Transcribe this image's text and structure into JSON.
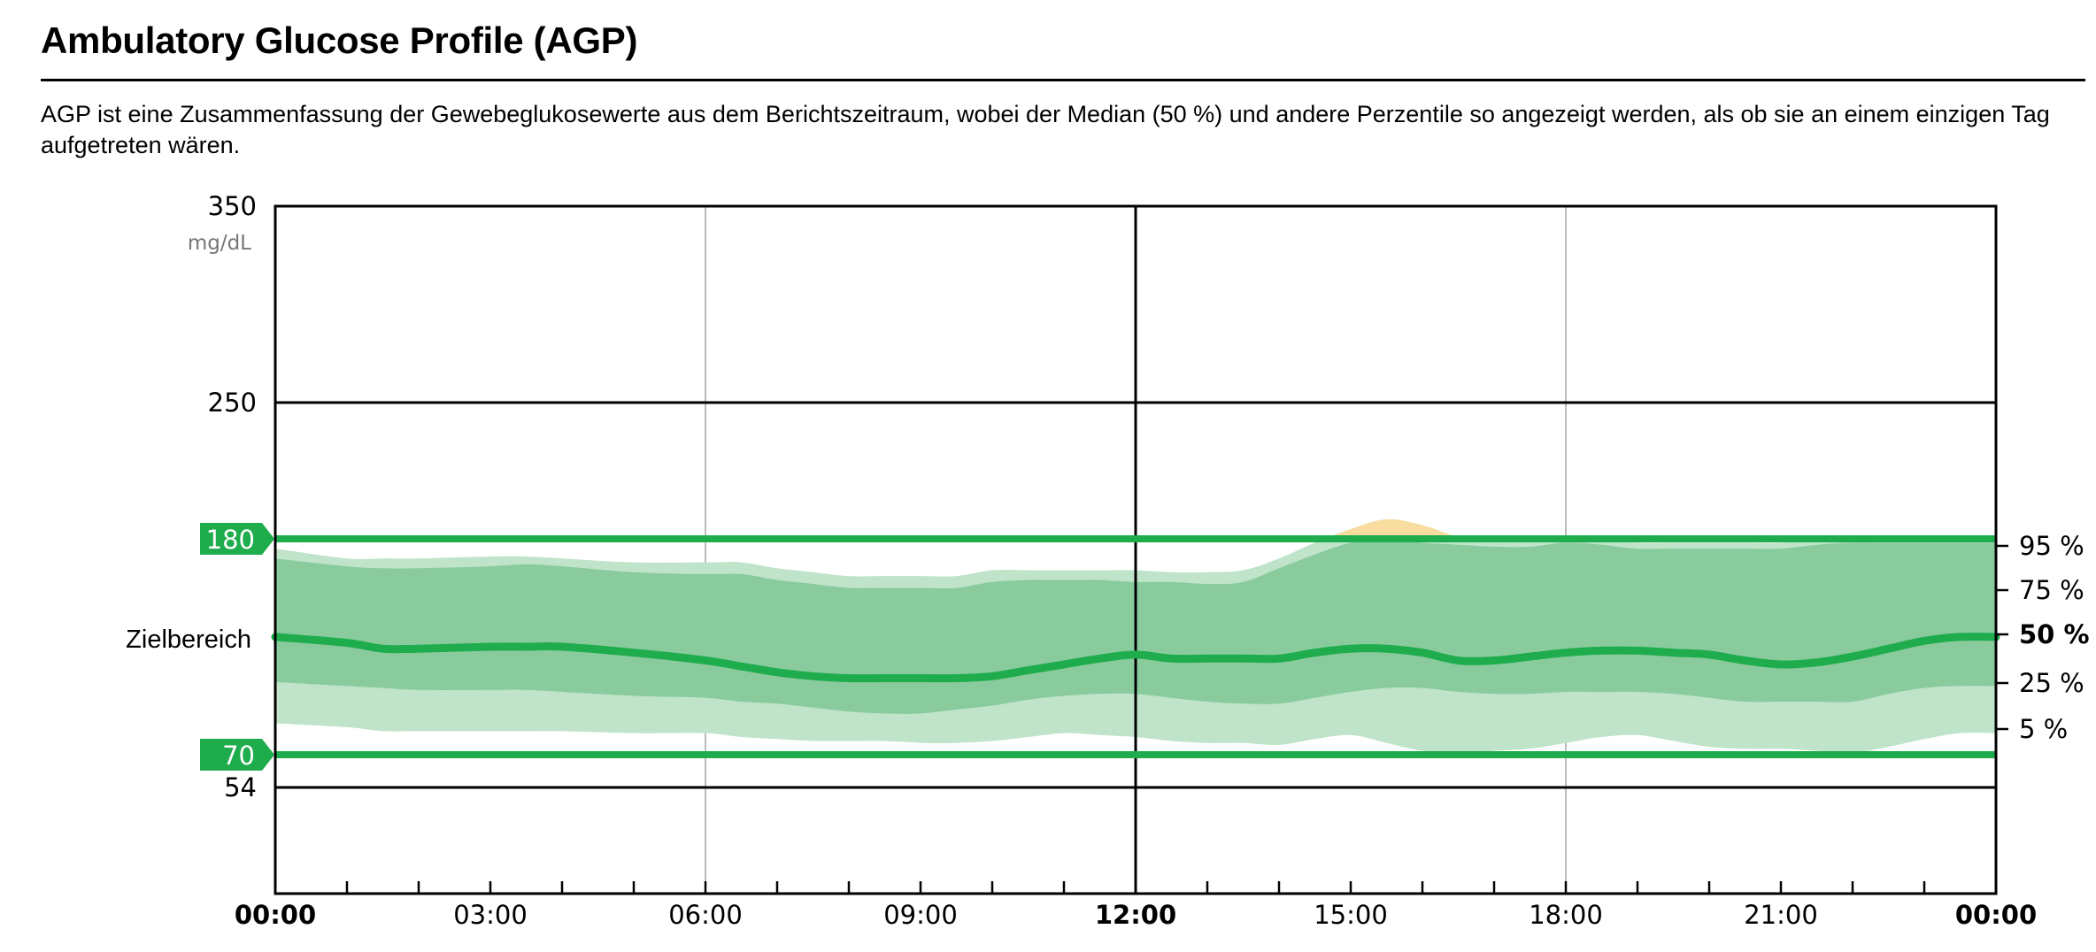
{
  "header": {
    "title": "Ambulatory Glucose Profile (AGP)",
    "description": "AGP ist eine Zusammenfassung der Gewebeglukosewerte aus dem Berichtszeitraum, wobei der Median (50 %) und andere Perzentile so angezeigt werden, als ob sie an einem einzigen Tag aufgetreten wären."
  },
  "colors": {
    "target_green": "#1fac4d",
    "band_25_75": "#8acb9e",
    "band_5_95": "#bfe4c9",
    "above_range": "#f8dd9e",
    "grid_major": "#000000",
    "grid_minor": "#bbbbbb"
  },
  "chart_data": {
    "type": "area",
    "title": "",
    "ylabel": "mg/dL",
    "ylim": [
      0,
      350
    ],
    "y_ticks": [
      "350",
      "250",
      "54"
    ],
    "y_tick_values": [
      350,
      250,
      54
    ],
    "target_range": {
      "low": 70,
      "high": 180,
      "low_label": "70",
      "high_label": "180",
      "label": "Zielbereich"
    },
    "xlim": [
      "00:00",
      "24:00"
    ],
    "x_ticks": [
      "00:00",
      "03:00",
      "06:00",
      "09:00",
      "12:00",
      "15:00",
      "18:00",
      "21:00",
      "00:00"
    ],
    "x_tick_bold": [
      true,
      false,
      false,
      false,
      true,
      false,
      false,
      false,
      true
    ],
    "percentile_labels": [
      "95 %",
      "75 %",
      "50 %",
      "25 %",
      "5 %"
    ],
    "percentile_bold": [
      false,
      false,
      true,
      false,
      false
    ],
    "x": [
      "00:00",
      "01:00",
      "01:30",
      "02:00",
      "03:00",
      "03:30",
      "04:00",
      "05:00",
      "06:00",
      "06:30",
      "07:00",
      "07:30",
      "08:00",
      "08:30",
      "09:00",
      "09:30",
      "10:00",
      "10:30",
      "11:00",
      "11:30",
      "12:00",
      "12:30",
      "13:00",
      "13:30",
      "14:00",
      "14:30",
      "15:00",
      "15:30",
      "16:00",
      "16:30",
      "17:00",
      "17:30",
      "18:00",
      "18:30",
      "19:00",
      "19:30",
      "20:00",
      "20:30",
      "21:00",
      "21:30",
      "22:00",
      "22:30",
      "23:00",
      "23:30",
      "24:00"
    ],
    "series": [
      {
        "name": "95 %",
        "values": [
          175,
          170,
          170,
          170,
          171,
          171,
          170,
          168,
          168,
          168,
          165,
          163,
          161,
          161,
          161,
          161,
          164,
          164,
          164,
          164,
          164,
          163,
          163,
          164,
          170,
          178,
          185,
          190,
          187,
          181,
          179,
          179,
          179,
          179,
          178,
          178,
          178,
          178,
          178,
          180,
          181,
          181,
          181,
          181,
          181
        ]
      },
      {
        "name": "75 %",
        "values": [
          170,
          166,
          165,
          165,
          166,
          167,
          166,
          163,
          162,
          162,
          159,
          157,
          155,
          155,
          155,
          155,
          158,
          159,
          159,
          159,
          158,
          158,
          157,
          158,
          165,
          172,
          178,
          180,
          178,
          177,
          176,
          176,
          178,
          177,
          175,
          175,
          175,
          175,
          175,
          177,
          178,
          178,
          178,
          178,
          178
        ]
      },
      {
        "name": "50 %",
        "values": [
          130,
          127,
          124,
          124,
          125,
          125,
          125,
          122,
          118,
          115,
          112,
          110,
          109,
          109,
          109,
          109,
          110,
          113,
          116,
          119,
          121,
          119,
          119,
          119,
          119,
          122,
          124,
          124,
          122,
          118,
          118,
          120,
          122,
          123,
          123,
          122,
          121,
          118,
          116,
          117,
          120,
          124,
          128,
          130,
          130
        ]
      },
      {
        "name": "25 %",
        "values": [
          107,
          105,
          104,
          103,
          103,
          103,
          102,
          100,
          99,
          97,
          96,
          94,
          92,
          91,
          91,
          93,
          95,
          98,
          100,
          101,
          101,
          99,
          97,
          96,
          96,
          99,
          102,
          104,
          104,
          102,
          101,
          101,
          102,
          102,
          102,
          101,
          99,
          97,
          97,
          97,
          97,
          101,
          104,
          105,
          105
        ]
      },
      {
        "name": "5 %",
        "values": [
          86,
          84,
          82,
          82,
          82,
          82,
          82,
          81,
          81,
          79,
          78,
          77,
          77,
          77,
          76,
          76,
          77,
          79,
          81,
          80,
          79,
          77,
          76,
          76,
          75,
          78,
          80,
          76,
          72,
          71,
          72,
          73,
          76,
          79,
          80,
          77,
          74,
          73,
          73,
          72,
          71,
          74,
          78,
          81,
          81
        ]
      }
    ]
  }
}
